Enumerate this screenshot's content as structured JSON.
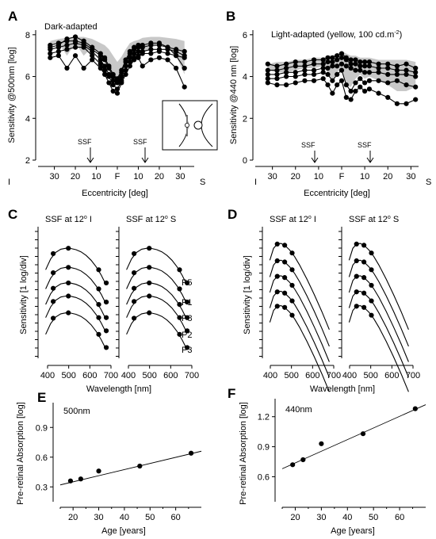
{
  "figure": {
    "panels": {
      "A": {
        "letter": "A",
        "title": "Dark-adapted",
        "ylabel": "Sensitivity @500nm [log]",
        "xlabel": "Eccentricity [deg]",
        "left_label": "I",
        "right_label": "S",
        "ssf_label": "SSF",
        "yticks": [
          "2",
          "4",
          "6",
          "8"
        ],
        "xticks": [
          "30",
          "20",
          "10",
          "F",
          "10",
          "20",
          "30"
        ]
      },
      "B": {
        "letter": "B",
        "title_main": "Light-adapted (yellow, 100 cd.m",
        "title_sup": "-2",
        "title_end": ")",
        "ylabel": "Sensitivity @440 nm [log]",
        "xlabel": "Eccentricity [deg]",
        "left_label": "I",
        "right_label": "S",
        "ssf_label": "SSF",
        "yticks": [
          "0",
          "2",
          "4",
          "6"
        ],
        "xticks": [
          "30",
          "20",
          "10",
          "F",
          "10",
          "20",
          "30"
        ]
      },
      "C": {
        "letter": "C",
        "left_title": "SSF at 12",
        "left_sup": "o",
        "left_end": " I",
        "right_title": "SSF at 12",
        "right_sup": "o",
        "right_end": " S",
        "ylabel": "Sensitivity [1 log/div]",
        "xlabel": "Wavelength [nm]",
        "xticks": [
          "400",
          "500",
          "600",
          "700"
        ],
        "participants": [
          "P5",
          "P1",
          "P8",
          "P2",
          "P3"
        ]
      },
      "D": {
        "letter": "D",
        "left_title": "SSF at 12",
        "left_sup": "o",
        "left_end": " I",
        "right_title": "SSF at 12",
        "right_sup": "o",
        "right_end": " S",
        "ylabel": "Sensitivity [1 log/div]",
        "xlabel": "Wavelength [nm]",
        "xticks": [
          "400",
          "500",
          "600",
          "700"
        ]
      },
      "E": {
        "letter": "E",
        "title": "500nm",
        "ylabel": "Pre-retinal Absorption [log]",
        "xlabel": "Age [years]",
        "yticks": [
          "0.3",
          "0.6",
          "0.9"
        ],
        "xticks": [
          "20",
          "30",
          "40",
          "50",
          "60"
        ]
      },
      "F": {
        "letter": "F",
        "title": "440nm",
        "ylabel": "Pre-retinal Absorption [log]",
        "xlabel": "Age [years]",
        "yticks": [
          "0.6",
          "0.9",
          "1.2"
        ],
        "xticks": [
          "20",
          "30",
          "40",
          "50",
          "60"
        ]
      }
    }
  },
  "chart_data": [
    {
      "panel": "A",
      "type": "line",
      "title": "Dark-adapted",
      "xlabel": "Eccentricity [deg]",
      "ylabel": "Sensitivity @500nm [log]",
      "xlim": [
        -34,
        34
      ],
      "ylim": [
        2,
        8.6
      ],
      "ssf_markers_deg": [
        -10,
        12
      ],
      "x": [
        -32,
        -28,
        -24,
        -20,
        -16,
        -12,
        -8,
        -6,
        -4,
        -2,
        0,
        2,
        4,
        6,
        8,
        10,
        12,
        16,
        20,
        24,
        28,
        32
      ],
      "band_upper": [
        7.7,
        7.8,
        7.85,
        7.9,
        7.9,
        7.8,
        7.6,
        7.5,
        7.3,
        7.0,
        6.7,
        6.95,
        7.3,
        7.6,
        7.7,
        7.75,
        7.85,
        7.9,
        7.9,
        7.85,
        7.8,
        7.7
      ],
      "series": [
        {
          "values": [
            7.5,
            7.6,
            7.7,
            7.7,
            7.6,
            7.3,
            7.0,
            6.8,
            6.4,
            6.0,
            5.8,
            6.2,
            6.7,
            7.1,
            7.3,
            7.4,
            7.4,
            7.5,
            7.5,
            7.4,
            7.3,
            7.2
          ]
        },
        {
          "values": [
            7.3,
            7.4,
            7.5,
            7.6,
            7.5,
            7.2,
            6.8,
            6.5,
            6.1,
            5.8,
            5.7,
            6.0,
            6.5,
            6.9,
            7.1,
            7.2,
            7.2,
            7.3,
            7.3,
            7.3,
            7.2,
            7.0
          ]
        },
        {
          "values": [
            7.1,
            7.2,
            7.3,
            7.4,
            7.4,
            7.0,
            6.6,
            6.3,
            6.0,
            5.6,
            5.4,
            5.8,
            6.3,
            6.7,
            6.9,
            7.0,
            7.1,
            7.1,
            7.2,
            7.1,
            7.0,
            6.9
          ]
        },
        {
          "values": [
            7.4,
            7.5,
            7.8,
            7.9,
            7.7,
            7.4,
            7.1,
            6.9,
            6.5,
            6.1,
            5.9,
            6.3,
            6.8,
            7.2,
            7.4,
            7.5,
            7.5,
            7.6,
            7.6,
            7.4,
            7.0,
            6.4
          ]
        },
        {
          "values": [
            6.9,
            7.0,
            6.4,
            7.0,
            6.4,
            6.8,
            6.4,
            6.1,
            5.7,
            5.3,
            5.2,
            5.7,
            6.1,
            6.5,
            6.8,
            6.9,
            6.5,
            6.8,
            6.9,
            6.8,
            6.4,
            5.5
          ]
        }
      ]
    },
    {
      "panel": "B",
      "type": "line",
      "title": "Light-adapted (yellow, 100 cd.m-2)",
      "xlabel": "Eccentricity [deg]",
      "ylabel": "Sensitivity @440 nm [log]",
      "xlim": [
        -34,
        34
      ],
      "ylim": [
        0,
        6.6
      ],
      "ssf_markers_deg": [
        -10,
        12
      ],
      "x": [
        -32,
        -28,
        -24,
        -20,
        -16,
        -12,
        -8,
        -6,
        -4,
        -2,
        0,
        2,
        4,
        6,
        8,
        10,
        12,
        16,
        20,
        24,
        28,
        32
      ],
      "band_upper": [
        4.6,
        4.7,
        4.7,
        4.8,
        4.8,
        4.9,
        4.9,
        5.0,
        5.0,
        5.1,
        5.2,
        5.1,
        5.0,
        5.0,
        4.9,
        4.9,
        4.9,
        4.8,
        4.8,
        4.8,
        4.8,
        4.7
      ],
      "series": [
        {
          "values": [
            4.6,
            4.5,
            4.6,
            4.7,
            4.7,
            4.8,
            4.8,
            4.9,
            4.9,
            5.0,
            5.1,
            4.9,
            4.8,
            4.8,
            4.7,
            4.7,
            4.7,
            4.6,
            4.6,
            4.5,
            4.6,
            4.4
          ]
        },
        {
          "values": [
            4.3,
            4.3,
            4.4,
            4.5,
            4.5,
            4.6,
            4.6,
            4.7,
            4.7,
            4.8,
            4.9,
            4.8,
            4.6,
            4.6,
            4.5,
            4.5,
            4.5,
            4.4,
            4.4,
            4.3,
            4.3,
            4.2
          ]
        },
        {
          "values": [
            4.1,
            4.1,
            4.2,
            4.2,
            4.3,
            4.3,
            4.4,
            4.4,
            4.5,
            4.5,
            4.6,
            4.5,
            4.4,
            4.3,
            4.3,
            4.2,
            4.2,
            4.2,
            4.1,
            4.1,
            4.1,
            4.0
          ]
        },
        {
          "values": [
            3.9,
            3.9,
            4.0,
            4.0,
            4.1,
            4.1,
            4.2,
            4.1,
            3.8,
            4.1,
            4.3,
            3.6,
            3.3,
            3.7,
            3.9,
            3.7,
            3.8,
            3.8,
            3.7,
            3.8,
            3.6,
            3.5
          ]
        },
        {
          "values": [
            3.7,
            3.6,
            3.6,
            3.7,
            3.8,
            3.8,
            3.9,
            3.6,
            3.2,
            3.6,
            3.8,
            3.0,
            2.9,
            3.3,
            3.5,
            3.3,
            3.4,
            3.2,
            3.0,
            2.7,
            2.7,
            2.9
          ]
        }
      ]
    },
    {
      "panel": "C-left",
      "type": "line",
      "title": "SSF at 12o I",
      "xlabel": "Wavelength [nm]",
      "ylabel": "Sensitivity [1 log/div]",
      "xlim": [
        380,
        700
      ],
      "ylim": [
        0,
        11
      ],
      "curve_x": [
        410,
        430,
        450,
        470,
        490,
        510,
        530,
        550,
        570,
        590,
        610,
        630,
        650
      ],
      "curve_shape": [
        -1.8,
        -0.9,
        -0.35,
        -0.08,
        0.0,
        -0.02,
        -0.12,
        -0.3,
        -0.6,
        -1.0,
        -1.55,
        -2.25,
        -3.1
      ],
      "point_x": [
        440,
        500,
        620,
        650
      ],
      "point_shape": [
        -0.45,
        0.0,
        -1.8,
        -2.9
      ],
      "series": [
        {
          "name": "P5",
          "offset": 9.2
        },
        {
          "name": "P1",
          "offset": 7.6
        },
        {
          "name": "P8",
          "offset": 6.3
        },
        {
          "name": "P2",
          "offset": 5.2
        },
        {
          "name": "P3",
          "offset": 3.8
        }
      ]
    },
    {
      "panel": "C-right",
      "type": "line",
      "title": "SSF at 12o S",
      "xlabel": "Wavelength [nm]",
      "ylabel": "Sensitivity [1 log/div]",
      "xlim": [
        380,
        700
      ],
      "ylim": [
        0,
        11
      ],
      "curve_x": [
        410,
        430,
        450,
        470,
        490,
        510,
        530,
        550,
        570,
        590,
        610,
        630,
        650
      ],
      "curve_shape": [
        -1.8,
        -0.9,
        -0.35,
        -0.08,
        0.0,
        -0.02,
        -0.12,
        -0.3,
        -0.6,
        -1.0,
        -1.55,
        -2.25,
        -3.1
      ],
      "point_x": [
        440,
        500,
        620,
        650
      ],
      "point_shape": [
        -0.45,
        0.0,
        -1.8,
        -2.9
      ],
      "series": [
        {
          "name": "P5",
          "offset": 9.2
        },
        {
          "name": "P1",
          "offset": 7.6
        },
        {
          "name": "P8",
          "offset": 6.3
        },
        {
          "name": "P2",
          "offset": 5.2
        },
        {
          "name": "P3",
          "offset": 3.8
        }
      ]
    },
    {
      "panel": "D-left",
      "type": "line",
      "title": "SSF at 12o I",
      "xlabel": "Wavelength [nm]",
      "ylabel": "Sensitivity [1 log/div]",
      "xlim": [
        380,
        700
      ],
      "ylim": [
        0,
        11
      ],
      "curve_x": [
        410,
        425,
        440,
        455,
        470,
        490,
        510,
        530,
        560,
        590,
        620,
        650
      ],
      "curve_shape": [
        -1.4,
        -0.4,
        -0.05,
        0.0,
        -0.15,
        -0.55,
        -1.1,
        -1.8,
        -3.0,
        -4.3,
        -5.7,
        -7.2
      ],
      "point_x": [
        440,
        470,
        500
      ],
      "point_shape": [
        -0.05,
        -0.15,
        -0.8
      ],
      "series": [
        {
          "name": "P5",
          "offset": 9.6
        },
        {
          "name": "P1",
          "offset": 8.2
        },
        {
          "name": "P8",
          "offset": 6.9
        },
        {
          "name": "P2",
          "offset": 5.6
        },
        {
          "name": "P3",
          "offset": 4.4
        }
      ]
    },
    {
      "panel": "D-right",
      "type": "line",
      "title": "SSF at 12o S",
      "xlabel": "Wavelength [nm]",
      "ylabel": "Sensitivity [1 log/div]",
      "xlim": [
        380,
        700
      ],
      "ylim": [
        0,
        11
      ],
      "curve_x": [
        410,
        425,
        440,
        455,
        470,
        490,
        510,
        530,
        560,
        590,
        620,
        650
      ],
      "curve_shape": [
        -1.4,
        -0.4,
        -0.05,
        0.0,
        -0.15,
        -0.55,
        -1.1,
        -1.8,
        -3.0,
        -4.3,
        -5.7,
        -7.2
      ],
      "point_x": [
        440,
        470,
        500
      ],
      "point_shape": [
        -0.05,
        -0.15,
        -0.8
      ],
      "series": [
        {
          "name": "P5",
          "offset": 9.6
        },
        {
          "name": "P1",
          "offset": 8.2
        },
        {
          "name": "P8",
          "offset": 6.9
        },
        {
          "name": "P2",
          "offset": 5.6
        },
        {
          "name": "P3",
          "offset": 4.4
        }
      ]
    },
    {
      "panel": "E",
      "type": "scatter",
      "title": "500nm",
      "xlabel": "Age [years]",
      "ylabel": "Pre-retinal Absorption [log]",
      "xlim": [
        15,
        70
      ],
      "ylim": [
        0.15,
        1.15
      ],
      "x": [
        19,
        23,
        30,
        46,
        66
      ],
      "y": [
        0.36,
        0.38,
        0.46,
        0.51,
        0.64
      ],
      "fit": {
        "x": [
          15,
          70
        ],
        "y": [
          0.32,
          0.66
        ]
      }
    },
    {
      "panel": "F",
      "type": "scatter",
      "title": "440nm",
      "xlabel": "Age [years]",
      "ylabel": "Pre-retinal Absorption [log]",
      "xlim": [
        15,
        70
      ],
      "ylim": [
        0.35,
        1.38
      ],
      "x": [
        19,
        23,
        30,
        46,
        66
      ],
      "y": [
        0.72,
        0.77,
        0.93,
        1.03,
        1.28
      ],
      "fit": {
        "x": [
          15,
          70
        ],
        "y": [
          0.68,
          1.32
        ]
      }
    }
  ]
}
